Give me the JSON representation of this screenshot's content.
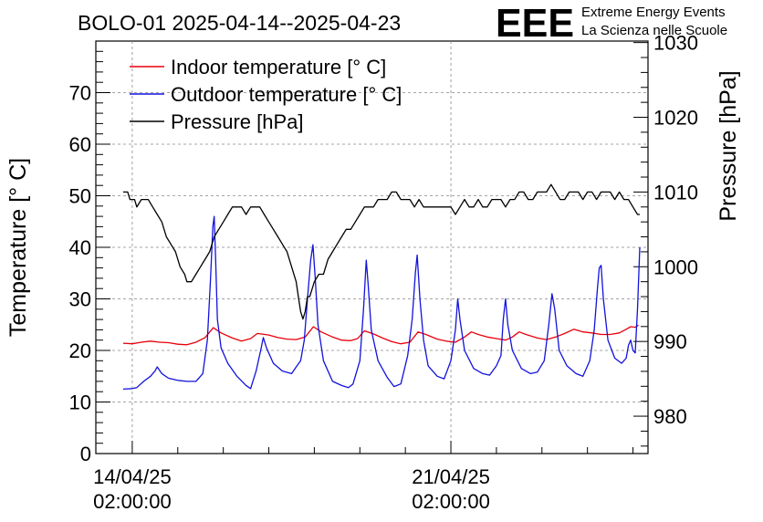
{
  "chart_data": {
    "type": "line",
    "title": "BOLO-01 2025-04-14--2025-04-23",
    "logo": {
      "letters": "EEE",
      "line1": "Extreme Energy Events",
      "line2": "La Scienza nelle Scuole",
      "color": "#1a1aee"
    },
    "ylabel": "Temperature [° C]",
    "y2label": "Pressure [hPa]",
    "ylim": [
      0,
      80
    ],
    "y2lim": [
      975,
      1030.2
    ],
    "xlim_days": [
      -0.8,
      11.33
    ],
    "yticks": [
      0,
      10,
      20,
      30,
      40,
      50,
      60,
      70
    ],
    "y2ticks": [
      980,
      990,
      1000,
      1010,
      1020,
      1030
    ],
    "xticks": [
      {
        "day": 0,
        "date": "14/04/25",
        "time": "02:00:00"
      },
      {
        "day": 7,
        "date": "21/04/25",
        "time": "02:00:00"
      }
    ],
    "grid": true,
    "legend_position": "top-left",
    "series": [
      {
        "name": "Indoor temperature [° C]",
        "axis": "left",
        "color": "#e8000b",
        "points": [
          [
            -0.2,
            21.4
          ],
          [
            0.0,
            21.3
          ],
          [
            0.2,
            21.6
          ],
          [
            0.4,
            21.8
          ],
          [
            0.6,
            21.6
          ],
          [
            0.8,
            21.5
          ],
          [
            1.0,
            21.2
          ],
          [
            1.2,
            21.1
          ],
          [
            1.4,
            21.6
          ],
          [
            1.6,
            22.5
          ],
          [
            1.78,
            24.4
          ],
          [
            1.95,
            23.4
          ],
          [
            2.2,
            22.4
          ],
          [
            2.4,
            21.8
          ],
          [
            2.6,
            22.3
          ],
          [
            2.75,
            23.3
          ],
          [
            3.0,
            23.0
          ],
          [
            3.2,
            22.5
          ],
          [
            3.4,
            22.2
          ],
          [
            3.6,
            22.1
          ],
          [
            3.8,
            22.6
          ],
          [
            3.98,
            24.6
          ],
          [
            4.15,
            23.6
          ],
          [
            4.4,
            22.6
          ],
          [
            4.6,
            22.0
          ],
          [
            4.8,
            21.9
          ],
          [
            4.95,
            22.3
          ],
          [
            5.1,
            23.8
          ],
          [
            5.3,
            23.2
          ],
          [
            5.5,
            22.4
          ],
          [
            5.7,
            21.7
          ],
          [
            5.9,
            21.3
          ],
          [
            6.1,
            21.6
          ],
          [
            6.28,
            23.6
          ],
          [
            6.45,
            23.1
          ],
          [
            6.7,
            22.2
          ],
          [
            6.9,
            21.8
          ],
          [
            7.1,
            21.6
          ],
          [
            7.3,
            22.6
          ],
          [
            7.45,
            23.6
          ],
          [
            7.6,
            23.1
          ],
          [
            7.8,
            22.6
          ],
          [
            8.0,
            22.3
          ],
          [
            8.2,
            22.0
          ],
          [
            8.35,
            22.6
          ],
          [
            8.5,
            23.6
          ],
          [
            8.65,
            23.1
          ],
          [
            8.9,
            22.4
          ],
          [
            9.1,
            22.1
          ],
          [
            9.3,
            22.6
          ],
          [
            9.5,
            23.3
          ],
          [
            9.7,
            24.1
          ],
          [
            9.9,
            23.6
          ],
          [
            10.1,
            23.4
          ],
          [
            10.3,
            23.1
          ],
          [
            10.5,
            23.1
          ],
          [
            10.7,
            23.4
          ],
          [
            10.85,
            24.1
          ],
          [
            10.95,
            24.6
          ],
          [
            11.05,
            24.5
          ],
          [
            11.12,
            24.9
          ]
        ]
      },
      {
        "name": "Outdoor temperature [° C]",
        "axis": "left",
        "color": "#1212dd",
        "points": [
          [
            -0.2,
            12.5
          ],
          [
            0.0,
            12.6
          ],
          [
            0.1,
            12.8
          ],
          [
            0.25,
            14.0
          ],
          [
            0.4,
            15.0
          ],
          [
            0.5,
            16.0
          ],
          [
            0.55,
            16.8
          ],
          [
            0.65,
            15.5
          ],
          [
            0.8,
            14.6
          ],
          [
            1.0,
            14.2
          ],
          [
            1.2,
            14.0
          ],
          [
            1.4,
            14.0
          ],
          [
            1.55,
            15.5
          ],
          [
            1.65,
            22.0
          ],
          [
            1.72,
            34.0
          ],
          [
            1.77,
            44.0
          ],
          [
            1.8,
            46.0
          ],
          [
            1.83,
            38.0
          ],
          [
            1.87,
            26.0
          ],
          [
            1.95,
            20.5
          ],
          [
            2.1,
            17.5
          ],
          [
            2.3,
            15.0
          ],
          [
            2.5,
            13.2
          ],
          [
            2.6,
            12.6
          ],
          [
            2.72,
            16.0
          ],
          [
            2.82,
            20.0
          ],
          [
            2.88,
            22.5
          ],
          [
            2.95,
            20.5
          ],
          [
            3.1,
            17.5
          ],
          [
            3.3,
            16.0
          ],
          [
            3.5,
            15.5
          ],
          [
            3.6,
            16.8
          ],
          [
            3.7,
            18.0
          ],
          [
            3.78,
            22.0
          ],
          [
            3.85,
            30.0
          ],
          [
            3.92,
            37.5
          ],
          [
            3.97,
            40.5
          ],
          [
            4.02,
            34.0
          ],
          [
            4.08,
            25.0
          ],
          [
            4.2,
            18.0
          ],
          [
            4.4,
            14.0
          ],
          [
            4.6,
            13.2
          ],
          [
            4.75,
            12.8
          ],
          [
            4.85,
            13.5
          ],
          [
            5.0,
            18.0
          ],
          [
            5.08,
            28.0
          ],
          [
            5.14,
            37.5
          ],
          [
            5.18,
            33.0
          ],
          [
            5.25,
            24.0
          ],
          [
            5.4,
            18.0
          ],
          [
            5.6,
            14.8
          ],
          [
            5.75,
            13.0
          ],
          [
            5.9,
            13.5
          ],
          [
            6.05,
            19.0
          ],
          [
            6.15,
            26.0
          ],
          [
            6.22,
            35.0
          ],
          [
            6.26,
            38.5
          ],
          [
            6.32,
            30.0
          ],
          [
            6.4,
            22.0
          ],
          [
            6.5,
            17.0
          ],
          [
            6.7,
            15.0
          ],
          [
            6.85,
            14.5
          ],
          [
            7.0,
            18.0
          ],
          [
            7.1,
            24.0
          ],
          [
            7.15,
            30.0
          ],
          [
            7.2,
            26.0
          ],
          [
            7.3,
            20.0
          ],
          [
            7.5,
            16.5
          ],
          [
            7.7,
            15.5
          ],
          [
            7.85,
            15.2
          ],
          [
            8.0,
            17.0
          ],
          [
            8.1,
            19.0
          ],
          [
            8.15,
            26.0
          ],
          [
            8.2,
            30.0
          ],
          [
            8.25,
            25.0
          ],
          [
            8.35,
            20.0
          ],
          [
            8.55,
            16.5
          ],
          [
            8.75,
            15.5
          ],
          [
            8.9,
            15.8
          ],
          [
            9.05,
            18.0
          ],
          [
            9.15,
            25.0
          ],
          [
            9.22,
            31.0
          ],
          [
            9.28,
            28.0
          ],
          [
            9.38,
            20.0
          ],
          [
            9.55,
            17.0
          ],
          [
            9.75,
            15.5
          ],
          [
            9.9,
            15.0
          ],
          [
            10.05,
            18.0
          ],
          [
            10.15,
            24.0
          ],
          [
            10.22,
            32.0
          ],
          [
            10.26,
            36.0
          ],
          [
            10.3,
            36.5
          ],
          [
            10.35,
            30.0
          ],
          [
            10.45,
            22.0
          ],
          [
            10.6,
            18.5
          ],
          [
            10.75,
            17.5
          ],
          [
            10.85,
            18.5
          ],
          [
            10.9,
            21.0
          ],
          [
            10.95,
            22.0
          ],
          [
            11.0,
            20.0
          ],
          [
            11.05,
            19.5
          ],
          [
            11.1,
            28.0
          ],
          [
            11.15,
            40.0
          ]
        ]
      },
      {
        "name": "Pressure [hPa]",
        "axis": "right",
        "color": "#000000",
        "points": [
          [
            -0.2,
            1010.0
          ],
          [
            -0.1,
            1010.0
          ],
          [
            -0.05,
            1009.0
          ],
          [
            0.05,
            1009.0
          ],
          [
            0.1,
            1008.0
          ],
          [
            0.2,
            1009.0
          ],
          [
            0.35,
            1009.0
          ],
          [
            0.45,
            1008.0
          ],
          [
            0.55,
            1007.0
          ],
          [
            0.65,
            1006.0
          ],
          [
            0.75,
            1004.0
          ],
          [
            0.85,
            1003.0
          ],
          [
            0.95,
            1002.0
          ],
          [
            1.05,
            1000.0
          ],
          [
            1.15,
            999.0
          ],
          [
            1.2,
            998.0
          ],
          [
            1.3,
            998.0
          ],
          [
            1.4,
            999.0
          ],
          [
            1.5,
            1000.0
          ],
          [
            1.6,
            1001.0
          ],
          [
            1.7,
            1002.0
          ],
          [
            1.8,
            1004.0
          ],
          [
            1.9,
            1005.0
          ],
          [
            2.0,
            1006.0
          ],
          [
            2.1,
            1007.0
          ],
          [
            2.2,
            1008.0
          ],
          [
            2.3,
            1008.0
          ],
          [
            2.4,
            1008.0
          ],
          [
            2.5,
            1007.0
          ],
          [
            2.6,
            1008.0
          ],
          [
            2.7,
            1008.0
          ],
          [
            2.8,
            1008.0
          ],
          [
            2.9,
            1007.0
          ],
          [
            3.0,
            1006.0
          ],
          [
            3.1,
            1005.0
          ],
          [
            3.2,
            1004.0
          ],
          [
            3.3,
            1003.0
          ],
          [
            3.4,
            1002.0
          ],
          [
            3.5,
            1000.0
          ],
          [
            3.6,
            998.0
          ],
          [
            3.65,
            996.0
          ],
          [
            3.7,
            994.0
          ],
          [
            3.75,
            993.0
          ],
          [
            3.8,
            994.0
          ],
          [
            3.85,
            996.0
          ],
          [
            3.9,
            996.0
          ],
          [
            3.95,
            997.0
          ],
          [
            4.0,
            998.0
          ],
          [
            4.1,
            999.0
          ],
          [
            4.2,
            999.0
          ],
          [
            4.3,
            1001.0
          ],
          [
            4.4,
            1002.0
          ],
          [
            4.5,
            1003.0
          ],
          [
            4.6,
            1004.0
          ],
          [
            4.7,
            1005.0
          ],
          [
            4.8,
            1005.0
          ],
          [
            4.9,
            1006.0
          ],
          [
            5.0,
            1007.0
          ],
          [
            5.1,
            1008.0
          ],
          [
            5.2,
            1008.0
          ],
          [
            5.3,
            1008.0
          ],
          [
            5.4,
            1009.0
          ],
          [
            5.5,
            1009.0
          ],
          [
            5.6,
            1009.0
          ],
          [
            5.7,
            1010.0
          ],
          [
            5.8,
            1010.0
          ],
          [
            5.9,
            1009.0
          ],
          [
            6.0,
            1009.0
          ],
          [
            6.1,
            1009.0
          ],
          [
            6.2,
            1008.0
          ],
          [
            6.3,
            1009.0
          ],
          [
            6.4,
            1008.0
          ],
          [
            6.5,
            1008.0
          ],
          [
            6.6,
            1008.0
          ],
          [
            6.7,
            1008.0
          ],
          [
            6.8,
            1008.0
          ],
          [
            6.9,
            1008.0
          ],
          [
            7.0,
            1008.0
          ],
          [
            7.1,
            1007.0
          ],
          [
            7.2,
            1008.0
          ],
          [
            7.3,
            1009.0
          ],
          [
            7.4,
            1008.0
          ],
          [
            7.5,
            1008.0
          ],
          [
            7.6,
            1009.0
          ],
          [
            7.7,
            1008.0
          ],
          [
            7.8,
            1008.0
          ],
          [
            7.9,
            1009.0
          ],
          [
            8.0,
            1009.0
          ],
          [
            8.1,
            1009.0
          ],
          [
            8.2,
            1008.0
          ],
          [
            8.3,
            1009.0
          ],
          [
            8.4,
            1009.0
          ],
          [
            8.5,
            1010.0
          ],
          [
            8.6,
            1010.0
          ],
          [
            8.7,
            1009.0
          ],
          [
            8.8,
            1009.0
          ],
          [
            8.9,
            1010.0
          ],
          [
            9.0,
            1010.0
          ],
          [
            9.1,
            1010.0
          ],
          [
            9.2,
            1011.0
          ],
          [
            9.3,
            1010.0
          ],
          [
            9.4,
            1009.0
          ],
          [
            9.5,
            1009.0
          ],
          [
            9.6,
            1010.0
          ],
          [
            9.7,
            1010.0
          ],
          [
            9.8,
            1010.0
          ],
          [
            9.9,
            1009.0
          ],
          [
            10.0,
            1010.0
          ],
          [
            10.1,
            1010.0
          ],
          [
            10.2,
            1009.0
          ],
          [
            10.3,
            1010.0
          ],
          [
            10.4,
            1010.0
          ],
          [
            10.5,
            1010.0
          ],
          [
            10.6,
            1009.0
          ],
          [
            10.7,
            1010.0
          ],
          [
            10.8,
            1009.0
          ],
          [
            10.9,
            1009.0
          ],
          [
            11.0,
            1008.0
          ],
          [
            11.1,
            1007.0
          ],
          [
            11.15,
            1007.0
          ]
        ]
      }
    ]
  }
}
